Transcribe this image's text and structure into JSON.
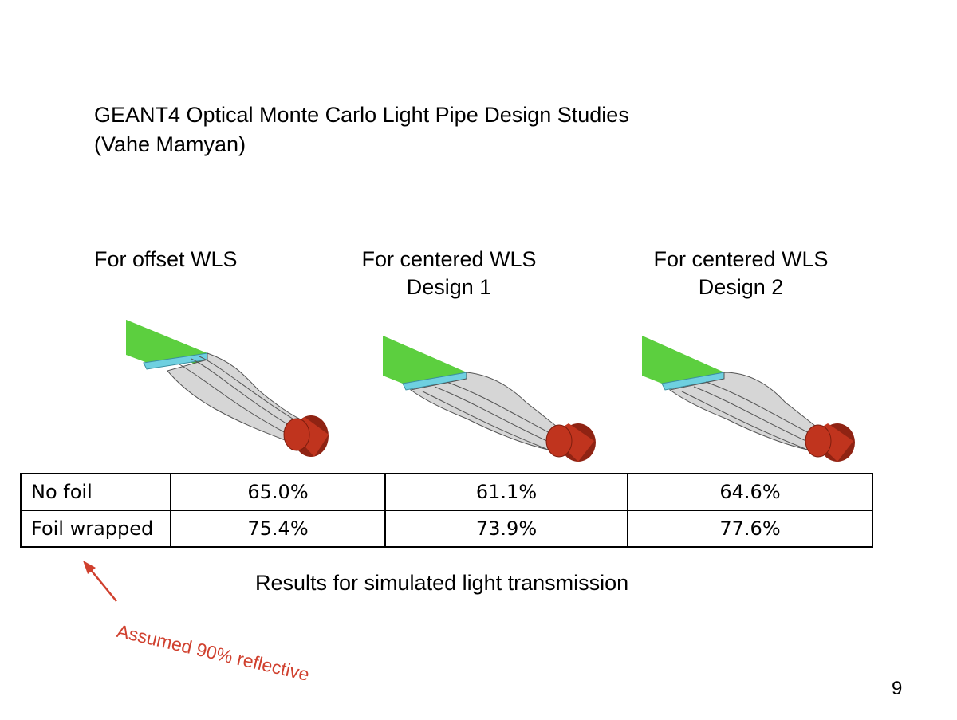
{
  "slide": {
    "title_line1": "GEANT4 Optical Monte Carlo Light Pipe Design Studies",
    "title_line2": "(Vahe Mamyan)",
    "page_number": "9"
  },
  "columns": [
    {
      "line1": "For offset WLS",
      "line2": ""
    },
    {
      "line1": "For centered WLS",
      "line2": "Design 1"
    },
    {
      "line1": "For centered WLS",
      "line2": "Design 2"
    }
  ],
  "table": {
    "rows": [
      {
        "label": "No foil",
        "values": [
          "65.0%",
          "61.1%",
          "64.6%"
        ]
      },
      {
        "label": "Foil wrapped",
        "values": [
          "75.4%",
          "73.9%",
          "77.6%"
        ]
      }
    ]
  },
  "caption": "Results for simulated light transmission",
  "annotation": {
    "text": "Assumed 90% reflective",
    "color": "#d0402e"
  },
  "colors": {
    "wls_bar": "#5ccf3f",
    "interface": "#6fd0e0",
    "light_guide": "#d9d9d9",
    "pmt": "#c0341e"
  }
}
